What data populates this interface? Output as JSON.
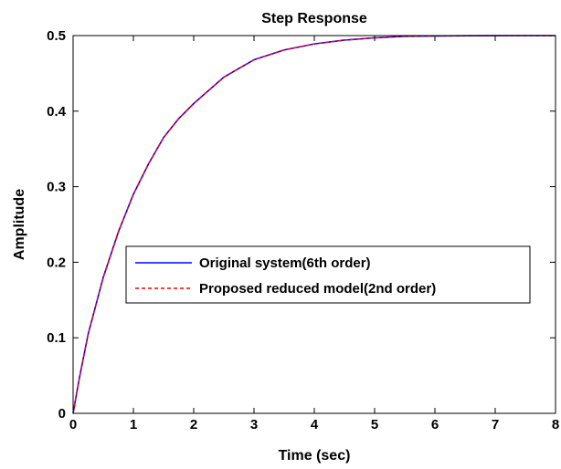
{
  "chart_data": {
    "type": "line",
    "title": "Step Response",
    "xlabel": "Time (sec)",
    "ylabel": "Amplitude",
    "xlim": [
      0,
      8
    ],
    "ylim": [
      0,
      0.5
    ],
    "x_ticks": [
      0,
      1,
      2,
      3,
      4,
      5,
      6,
      7,
      8
    ],
    "y_ticks": [
      0,
      0.1,
      0.2,
      0.3,
      0.4,
      0.5
    ],
    "grid": false,
    "legend_position": "center-right",
    "steady_state_value": 0.5,
    "series": [
      {
        "name": "Original system(6th order)",
        "color": "#0000ff",
        "style": "solid",
        "x": [
          0,
          0.1,
          0.25,
          0.5,
          0.75,
          1,
          1.25,
          1.5,
          1.75,
          2,
          2.5,
          3,
          3.5,
          4,
          4.5,
          5,
          5.5,
          6,
          6.5,
          7,
          7.5,
          8
        ],
        "y": [
          0,
          0.045,
          0.105,
          0.18,
          0.24,
          0.29,
          0.33,
          0.365,
          0.39,
          0.41,
          0.445,
          0.468,
          0.481,
          0.489,
          0.494,
          0.497,
          0.499,
          0.4995,
          0.4998,
          0.4999,
          0.5,
          0.5
        ]
      },
      {
        "name": "Proposed reduced model(2nd order)",
        "color": "#ff0000",
        "style": "dashed",
        "x": [
          0,
          0.1,
          0.25,
          0.5,
          0.75,
          1,
          1.25,
          1.5,
          1.75,
          2,
          2.5,
          3,
          3.5,
          4,
          4.5,
          5,
          5.5,
          6,
          6.5,
          7,
          7.5,
          8
        ],
        "y": [
          0,
          0.045,
          0.105,
          0.18,
          0.24,
          0.29,
          0.33,
          0.365,
          0.39,
          0.41,
          0.445,
          0.468,
          0.481,
          0.489,
          0.494,
          0.497,
          0.499,
          0.4995,
          0.4998,
          0.4999,
          0.5,
          0.5
        ]
      }
    ]
  }
}
